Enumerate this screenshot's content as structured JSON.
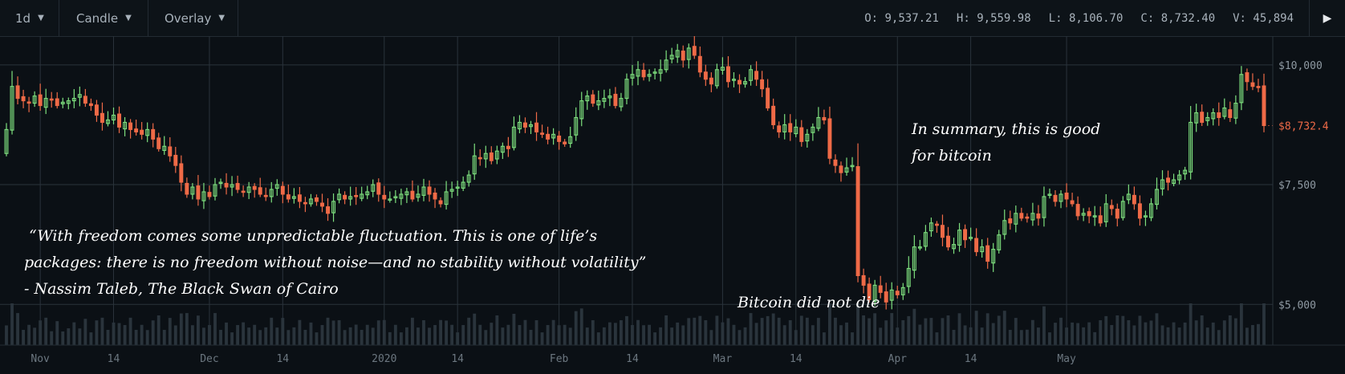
{
  "toolbar": {
    "interval": "1d",
    "chart_type": "Candle",
    "overlay": "Overlay",
    "ohlc": {
      "open_label": "O:",
      "open": "9,537.21",
      "high_label": "H:",
      "high": "9,559.98",
      "low_label": "L:",
      "low": "8,106.70",
      "close_label": "C:",
      "close": "8,732.40",
      "volume_label": "V:",
      "volume": "45,894"
    }
  },
  "annotations": {
    "quote_line1": "“With freedom comes some unpredictable fluctuation. This is one of life’s",
    "quote_line2": "packages: there is no freedom without noise—and no stability without volatility”",
    "quote_line3": "- Nassim Taleb, The Black Swan of Cairo",
    "summary_line1": "In  summary,  this  is  good",
    "summary_line2": "for bitcoin",
    "did_not_die": "Bitcoin did not die"
  },
  "colors": {
    "up": "#7ee07e",
    "down": "#ef6a47",
    "background": "#0b1015",
    "grid": "#2a333b",
    "last_price": "#ef6a47"
  },
  "chart_data": {
    "type": "candlestick",
    "title": "",
    "x_ticks": [
      "Nov",
      "14",
      "Dec",
      "14",
      "2020",
      "14",
      "Feb",
      "14",
      "Mar",
      "14",
      "Apr",
      "14",
      "May"
    ],
    "y_ticks": [
      "$10,000",
      "$7,500",
      "$5,000"
    ],
    "y_tick_values": [
      10000,
      7500,
      5000
    ],
    "ylim": [
      4150,
      10600
    ],
    "last_price": 8732.4,
    "last_price_label": "$8,732.4",
    "grid": true,
    "x_range": [
      "2019-10-26",
      "2020-05-10"
    ],
    "closes": [
      8650,
      9550,
      9300,
      9250,
      9200,
      9350,
      9150,
      9300,
      9280,
      9150,
      9220,
      9250,
      9300,
      9380,
      9200,
      9150,
      8950,
      8800,
      8850,
      8950,
      8700,
      8800,
      8650,
      8600,
      8550,
      8650,
      8450,
      8250,
      8300,
      8100,
      7900,
      7550,
      7300,
      7450,
      7200,
      7350,
      7250,
      7500,
      7550,
      7450,
      7500,
      7400,
      7350,
      7450,
      7400,
      7300,
      7250,
      7400,
      7500,
      7300,
      7200,
      7250,
      7150,
      7100,
      7200,
      7150,
      7050,
      6900,
      7150,
      7300,
      7200,
      7250,
      7250,
      7300,
      7350,
      7500,
      7300,
      7200,
      7200,
      7250,
      7300,
      7350,
      7200,
      7300,
      7450,
      7300,
      7200,
      7100,
      7350,
      7400,
      7450,
      7550,
      7700,
      8100,
      8050,
      8150,
      8000,
      8200,
      8300,
      8250,
      8700,
      8800,
      8700,
      8750,
      8600,
      8550,
      8450,
      8550,
      8400,
      8350,
      8500,
      8900,
      9250,
      9350,
      9200,
      9250,
      9300,
      9350,
      9150,
      9300,
      9700,
      9800,
      9900,
      9750,
      9800,
      9850,
      9900,
      10100,
      10200,
      10300,
      10100,
      10350,
      10200,
      9850,
      9700,
      9600,
      9900,
      9950,
      9650,
      9700,
      9600,
      9650,
      9900,
      9700,
      9500,
      9100,
      8750,
      8600,
      8750,
      8600,
      8700,
      8400,
      8550,
      8700,
      8900,
      8850,
      8050,
      7900,
      7750,
      7850,
      7900,
      5600,
      5400,
      5100,
      5400,
      5250,
      5050,
      5300,
      5200,
      5350,
      5750,
      6200,
      6200,
      6500,
      6700,
      6650,
      6400,
      6200,
      6250,
      6550,
      6350,
      6400,
      6100,
      6200,
      5900,
      6150,
      6450,
      6750,
      6700,
      6900,
      6800,
      6800,
      6900,
      6800,
      7250,
      7300,
      7150,
      7300,
      7200,
      7100,
      6850,
      6900,
      6850,
      6850,
      6700,
      7100,
      7000,
      6800,
      7150,
      7300,
      7100,
      6800,
      6850,
      7100,
      7400,
      7600,
      7550,
      7600,
      7700,
      7800,
      8800,
      9000,
      8800,
      8900,
      9000,
      8900,
      9100,
      8900,
      9200,
      9800,
      9650,
      9550,
      9537.21,
      8732.4
    ],
    "volume": "per-day bars (relative, unlabeled)"
  }
}
